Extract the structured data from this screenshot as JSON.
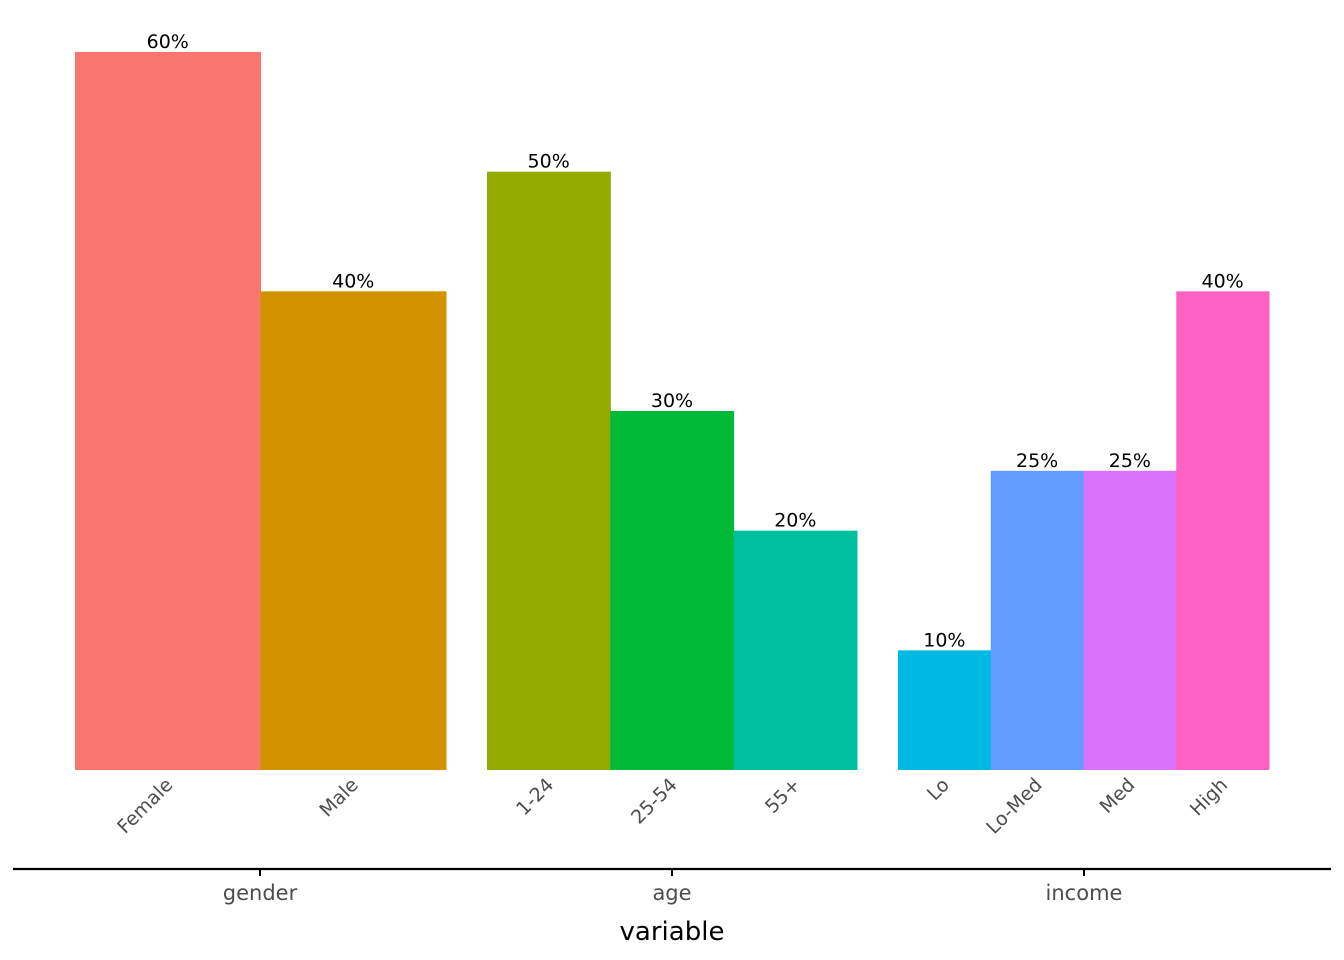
{
  "chart_data": {
    "type": "bar",
    "title": "",
    "xlabel": "variable",
    "ylabel": "",
    "ylim": [
      0,
      60
    ],
    "grid": false,
    "legend": "none",
    "groups": [
      {
        "name": "gender",
        "categories": [
          "Female",
          "Male"
        ],
        "values": [
          60,
          40
        ],
        "labels": [
          "60%",
          "40%"
        ],
        "colors": [
          "#F8766D",
          "#D39200"
        ]
      },
      {
        "name": "age",
        "categories": [
          "1-24",
          "25-54",
          "55+"
        ],
        "values": [
          50,
          30,
          20
        ],
        "labels": [
          "50%",
          "30%",
          "20%"
        ],
        "colors": [
          "#93AA00",
          "#00BA38",
          "#00C19F"
        ]
      },
      {
        "name": "income",
        "categories": [
          "Lo",
          "Lo-Med",
          "Med",
          "High"
        ],
        "values": [
          10,
          25,
          25,
          40
        ],
        "labels": [
          "10%",
          "25%",
          "25%",
          "40%"
        ],
        "colors": [
          "#00B9E3",
          "#619CFF",
          "#DB72FB",
          "#FF61C3"
        ]
      }
    ]
  }
}
